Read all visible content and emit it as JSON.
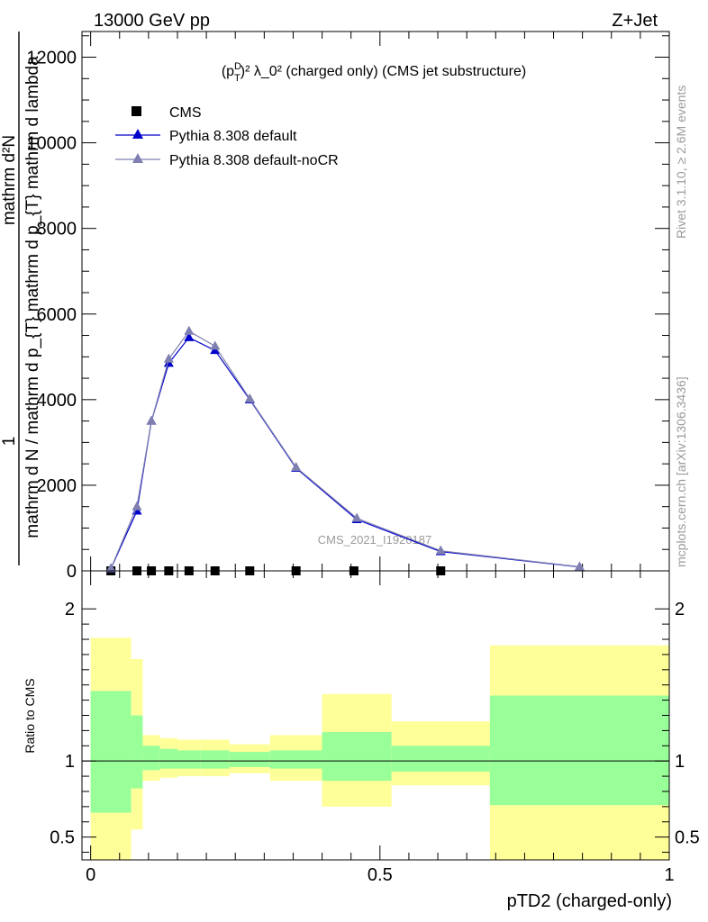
{
  "header": {
    "left": "13000 GeV pp",
    "right": "Z+Jet"
  },
  "plot_title": {
    "prefix": "(p",
    "sub": "T",
    "sup": "D",
    "rest": ")² λ_0² (charged only) (CMS jet substructure)"
  },
  "side_labels": {
    "rivet": "Rivet 3.1.10, ≥ 2.6M events",
    "mcplots": "mcplots.cern.ch [arXiv:1306.3436]"
  },
  "watermark": "CMS_2021_I1920187",
  "legend": [
    {
      "name": "CMS",
      "marker": "square",
      "color": "#000000"
    },
    {
      "name": "Pythia 8.308 default",
      "marker": "triangle",
      "color": "#0000cc"
    },
    {
      "name": "Pythia 8.308 default-noCR",
      "marker": "triangle",
      "color": "#7f7fb0"
    }
  ],
  "chart_data": {
    "type": "line",
    "main": {
      "ylabel_numerator": "1",
      "ylabel_denominator": "mathrm d N / mathrm d p_{T} mathrm d p_{T} mathrm d lambda",
      "ylabel_top": "mathrm d²N",
      "ylim": [
        0,
        12600
      ],
      "yticks": [
        0,
        2000,
        4000,
        6000,
        8000,
        10000,
        12000
      ],
      "ytick_labels": [
        "0",
        "2000",
        "4000",
        "6000",
        "8000",
        "10000",
        "12000"
      ],
      "xlim": [
        -0.015,
        1.0
      ],
      "series": [
        {
          "name": "CMS",
          "color": "#000000",
          "x": [
            0.035,
            0.08,
            0.105,
            0.135,
            0.17,
            0.215,
            0.275,
            0.355,
            0.455,
            0.605
          ],
          "values": [
            0,
            0,
            0,
            0,
            0,
            0,
            0,
            0,
            0,
            0
          ]
        },
        {
          "name": "Pythia 8.308 default",
          "color": "#0000cc",
          "x": [
            0.035,
            0.08,
            0.105,
            0.135,
            0.17,
            0.215,
            0.275,
            0.355,
            0.46,
            0.605,
            0.845
          ],
          "values": [
            50,
            1400,
            3500,
            4850,
            5450,
            5150,
            4000,
            2400,
            1200,
            450,
            90
          ]
        },
        {
          "name": "Pythia 8.308 default-noCR",
          "color": "#7f7fb0",
          "x": [
            0.035,
            0.08,
            0.105,
            0.135,
            0.17,
            0.215,
            0.275,
            0.355,
            0.46,
            0.605,
            0.845
          ],
          "values": [
            55,
            1500,
            3500,
            4950,
            5600,
            5250,
            4020,
            2420,
            1230,
            470,
            95
          ]
        }
      ]
    },
    "ratio": {
      "ylabel": "Ratio to CMS",
      "ylim": [
        0.35,
        2.25
      ],
      "yticks": [
        0.5,
        1,
        2
      ],
      "ytick_labels": [
        "0.5",
        "1",
        "2"
      ],
      "xlabel": "pTD2 (charged-only)",
      "xticks": [
        0,
        0.5,
        1
      ],
      "xtick_labels": [
        "0",
        "0.5",
        "1"
      ],
      "bins": [
        {
          "x0": 0.0,
          "x1": 0.07,
          "inner": [
            0.66,
            1.46
          ],
          "outer": [
            0.35,
            1.81
          ]
        },
        {
          "x0": 0.07,
          "x1": 0.09,
          "inner": [
            0.82,
            1.3
          ],
          "outer": [
            0.55,
            1.67
          ]
        },
        {
          "x0": 0.09,
          "x1": 0.12,
          "inner": [
            0.94,
            1.1
          ],
          "outer": [
            0.87,
            1.17
          ]
        },
        {
          "x0": 0.12,
          "x1": 0.15,
          "inner": [
            0.95,
            1.08
          ],
          "outer": [
            0.89,
            1.15
          ]
        },
        {
          "x0": 0.15,
          "x1": 0.19,
          "inner": [
            0.95,
            1.07
          ],
          "outer": [
            0.9,
            1.14
          ]
        },
        {
          "x0": 0.19,
          "x1": 0.24,
          "inner": [
            0.95,
            1.07
          ],
          "outer": [
            0.9,
            1.14
          ]
        },
        {
          "x0": 0.24,
          "x1": 0.31,
          "inner": [
            0.96,
            1.06
          ],
          "outer": [
            0.92,
            1.11
          ]
        },
        {
          "x0": 0.31,
          "x1": 0.4,
          "inner": [
            0.95,
            1.07
          ],
          "outer": [
            0.87,
            1.17
          ]
        },
        {
          "x0": 0.4,
          "x1": 0.52,
          "inner": [
            0.87,
            1.19
          ],
          "outer": [
            0.7,
            1.44
          ]
        },
        {
          "x0": 0.52,
          "x1": 0.69,
          "inner": [
            0.93,
            1.1
          ],
          "outer": [
            0.84,
            1.26
          ]
        },
        {
          "x0": 0.69,
          "x1": 1.0,
          "inner": [
            0.71,
            1.43
          ],
          "outer": [
            0.35,
            1.76
          ]
        }
      ]
    }
  },
  "colors": {
    "band_inner": "#99ff99",
    "band_outer": "#ffff99"
  }
}
